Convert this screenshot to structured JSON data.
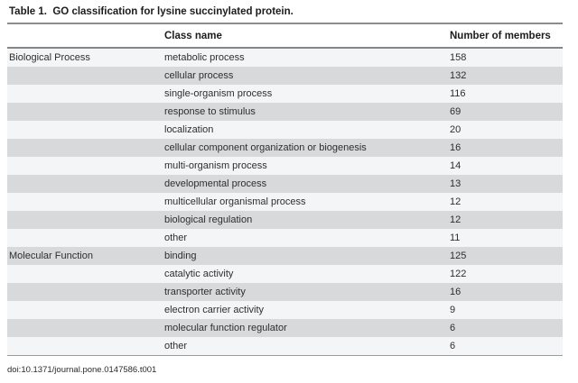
{
  "title": "Table 1.  GO classification for lysine succinylated protein.",
  "header": {
    "category": "",
    "class_name": "Class name",
    "members": "Number of members"
  },
  "rows": [
    {
      "category": "Biological Process",
      "class_name": "metabolic process",
      "members": "158"
    },
    {
      "category": "",
      "class_name": "cellular process",
      "members": "132"
    },
    {
      "category": "",
      "class_name": "single-organism process",
      "members": "116"
    },
    {
      "category": "",
      "class_name": "response to stimulus",
      "members": "69"
    },
    {
      "category": "",
      "class_name": "localization",
      "members": "20"
    },
    {
      "category": "",
      "class_name": "cellular component organization or biogenesis",
      "members": "16"
    },
    {
      "category": "",
      "class_name": "multi-organism process",
      "members": "14"
    },
    {
      "category": "",
      "class_name": "developmental process",
      "members": "13"
    },
    {
      "category": "",
      "class_name": "multicellular organismal process",
      "members": "12"
    },
    {
      "category": "",
      "class_name": "biological regulation",
      "members": "12"
    },
    {
      "category": "",
      "class_name": "other",
      "members": "11"
    },
    {
      "category": "Molecular Function",
      "class_name": "binding",
      "members": "125"
    },
    {
      "category": "",
      "class_name": "catalytic activity",
      "members": "122"
    },
    {
      "category": "",
      "class_name": "transporter activity",
      "members": "16"
    },
    {
      "category": "",
      "class_name": "electron carrier activity",
      "members": "9"
    },
    {
      "category": "",
      "class_name": "molecular function regulator",
      "members": "6"
    },
    {
      "category": "",
      "class_name": "other",
      "members": "6"
    }
  ],
  "footer": {
    "doi": "doi:10.1371/journal.pone.0147586.t001"
  },
  "colors": {
    "stripe_light": "#f4f5f6",
    "stripe_dark": "#d8d9da",
    "rule_dark": "#8b8c8d",
    "rule_bottom": "#9b9c9d",
    "text": "#2e2e2e"
  }
}
